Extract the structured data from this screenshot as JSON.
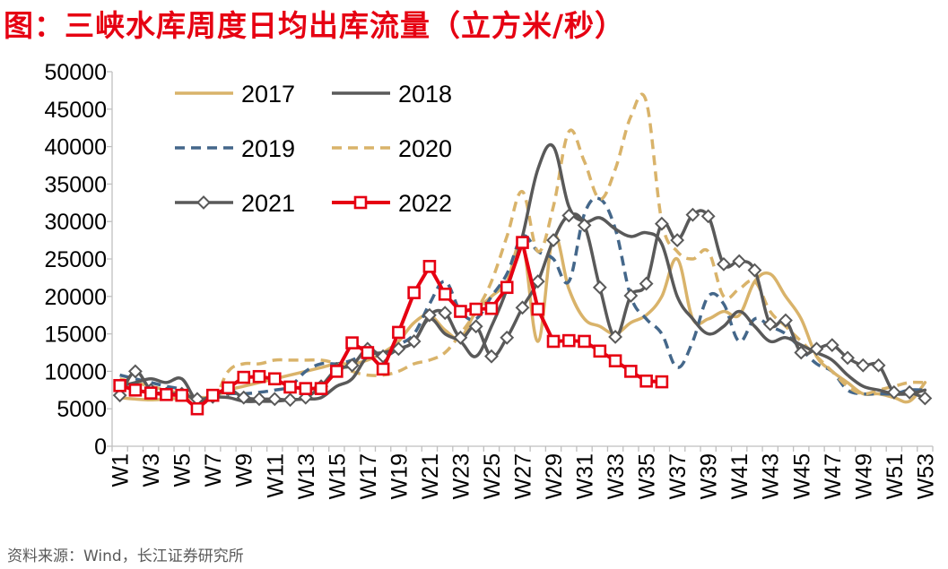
{
  "title": "图：三峡水库周度日均出库流量（立方米/秒）",
  "source": "资料来源：Wind，长江证券研究所",
  "chart_data": {
    "type": "line",
    "title": "三峡水库周度日均出库流量（立方米/秒）",
    "xlabel": "",
    "ylabel": "",
    "ylim": [
      0,
      50000
    ],
    "yticks": [
      0,
      5000,
      10000,
      15000,
      20000,
      25000,
      30000,
      35000,
      40000,
      45000,
      50000
    ],
    "x_tick_labels": [
      "W1",
      "W3",
      "W5",
      "W7",
      "W9",
      "W11",
      "W13",
      "W15",
      "W17",
      "W19",
      "W21",
      "W23",
      "W25",
      "W27",
      "W29",
      "W31",
      "W33",
      "W35",
      "W37",
      "W39",
      "W41",
      "W43",
      "W45",
      "W47",
      "W49",
      "W51",
      "W53"
    ],
    "weeks": 53,
    "series": [
      {
        "name": "2017",
        "color": "#d9b36a",
        "dash": "solid",
        "marker": "none",
        "values": [
          6500,
          6300,
          6200,
          6300,
          6400,
          6500,
          6600,
          7500,
          8000,
          8500,
          9000,
          9500,
          10000,
          10500,
          11000,
          11000,
          11500,
          12500,
          14000,
          16500,
          17500,
          15500,
          14500,
          18000,
          20000,
          22000,
          27000,
          14000,
          28000,
          21000,
          17000,
          16000,
          15000,
          16500,
          17500,
          20000,
          25000,
          17000,
          17000,
          18000,
          17500,
          22000,
          23000,
          20000,
          17000,
          12000,
          10000,
          8500,
          7000,
          7000,
          6500,
          6000,
          8500
        ]
      },
      {
        "name": "2018",
        "color": "#595959",
        "dash": "solid",
        "marker": "none",
        "values": [
          8000,
          8500,
          9000,
          8500,
          9000,
          6000,
          6500,
          6500,
          6000,
          6000,
          6000,
          6200,
          6300,
          6500,
          8000,
          9000,
          12000,
          12500,
          13000,
          14000,
          17000,
          15000,
          14000,
          12000,
          16000,
          21000,
          28000,
          37000,
          40000,
          32000,
          30000,
          30500,
          29000,
          28000,
          28500,
          27000,
          20000,
          17000,
          15000,
          16000,
          18000,
          16000,
          14000,
          14500,
          13500,
          12500,
          11500,
          9500,
          8000,
          7500,
          7000,
          7000,
          7500
        ]
      },
      {
        "name": "2019",
        "color": "#44678a",
        "dash": "dash",
        "marker": "none",
        "values": [
          9500,
          9000,
          8500,
          8000,
          7500,
          6000,
          6500,
          7000,
          7000,
          7200,
          7500,
          8000,
          10000,
          11000,
          11000,
          11500,
          12500,
          12000,
          13500,
          15000,
          19000,
          22000,
          18000,
          17000,
          20000,
          23000,
          28000,
          26000,
          25000,
          22000,
          31000,
          33000,
          29000,
          20000,
          17000,
          15000,
          10500,
          14000,
          20000,
          19000,
          14000,
          17000,
          16000,
          15000,
          13000,
          11000,
          10000,
          7500,
          7000,
          7000,
          7000,
          7500,
          7500
        ]
      },
      {
        "name": "2020",
        "color": "#d9b36a",
        "dash": "dash",
        "marker": "none",
        "values": [
          9000,
          8500,
          8000,
          7500,
          7000,
          6500,
          6000,
          10000,
          11000,
          11000,
          11500,
          11500,
          11500,
          11500,
          11000,
          10000,
          9500,
          9500,
          10000,
          11000,
          11500,
          12500,
          15000,
          18000,
          22000,
          28000,
          34000,
          26000,
          32000,
          42000,
          38000,
          33000,
          37000,
          44000,
          46000,
          30000,
          26000,
          25000,
          26000,
          20000,
          21000,
          22000,
          18000,
          16000,
          14000,
          12000,
          10000,
          8000,
          7000,
          7500,
          8000,
          8500,
          8500
        ]
      },
      {
        "name": "2021",
        "color": "#595959",
        "dash": "solid",
        "marker": "diamond",
        "values": [
          6800,
          10000,
          7500,
          7000,
          7000,
          6300,
          6600,
          7600,
          6500,
          6300,
          6300,
          6200,
          6500,
          8000,
          10300,
          10800,
          13000,
          12000,
          13000,
          14000,
          17500,
          17800,
          14500,
          16000,
          12000,
          14500,
          18500,
          22000,
          27500,
          30800,
          29500,
          21200,
          14600,
          20100,
          21700,
          29700,
          27500,
          30900,
          30700,
          24300,
          24700,
          23500,
          16300,
          16800,
          12500,
          13000,
          13500,
          11800,
          10800,
          10800,
          7200,
          7200,
          6400
        ]
      },
      {
        "name": "2022",
        "color": "#e60012",
        "dash": "solid",
        "marker": "square",
        "values": [
          8100,
          7500,
          7100,
          6900,
          6800,
          5000,
          6800,
          7800,
          9200,
          9300,
          9000,
          7900,
          7700,
          7700,
          10000,
          13800,
          12500,
          10300,
          15200,
          20500,
          24000,
          20300,
          18000,
          18300,
          18400,
          21200,
          27200,
          18300,
          14000,
          14100,
          14000,
          12700,
          11400,
          10000,
          8700,
          8600
        ]
      }
    ]
  }
}
